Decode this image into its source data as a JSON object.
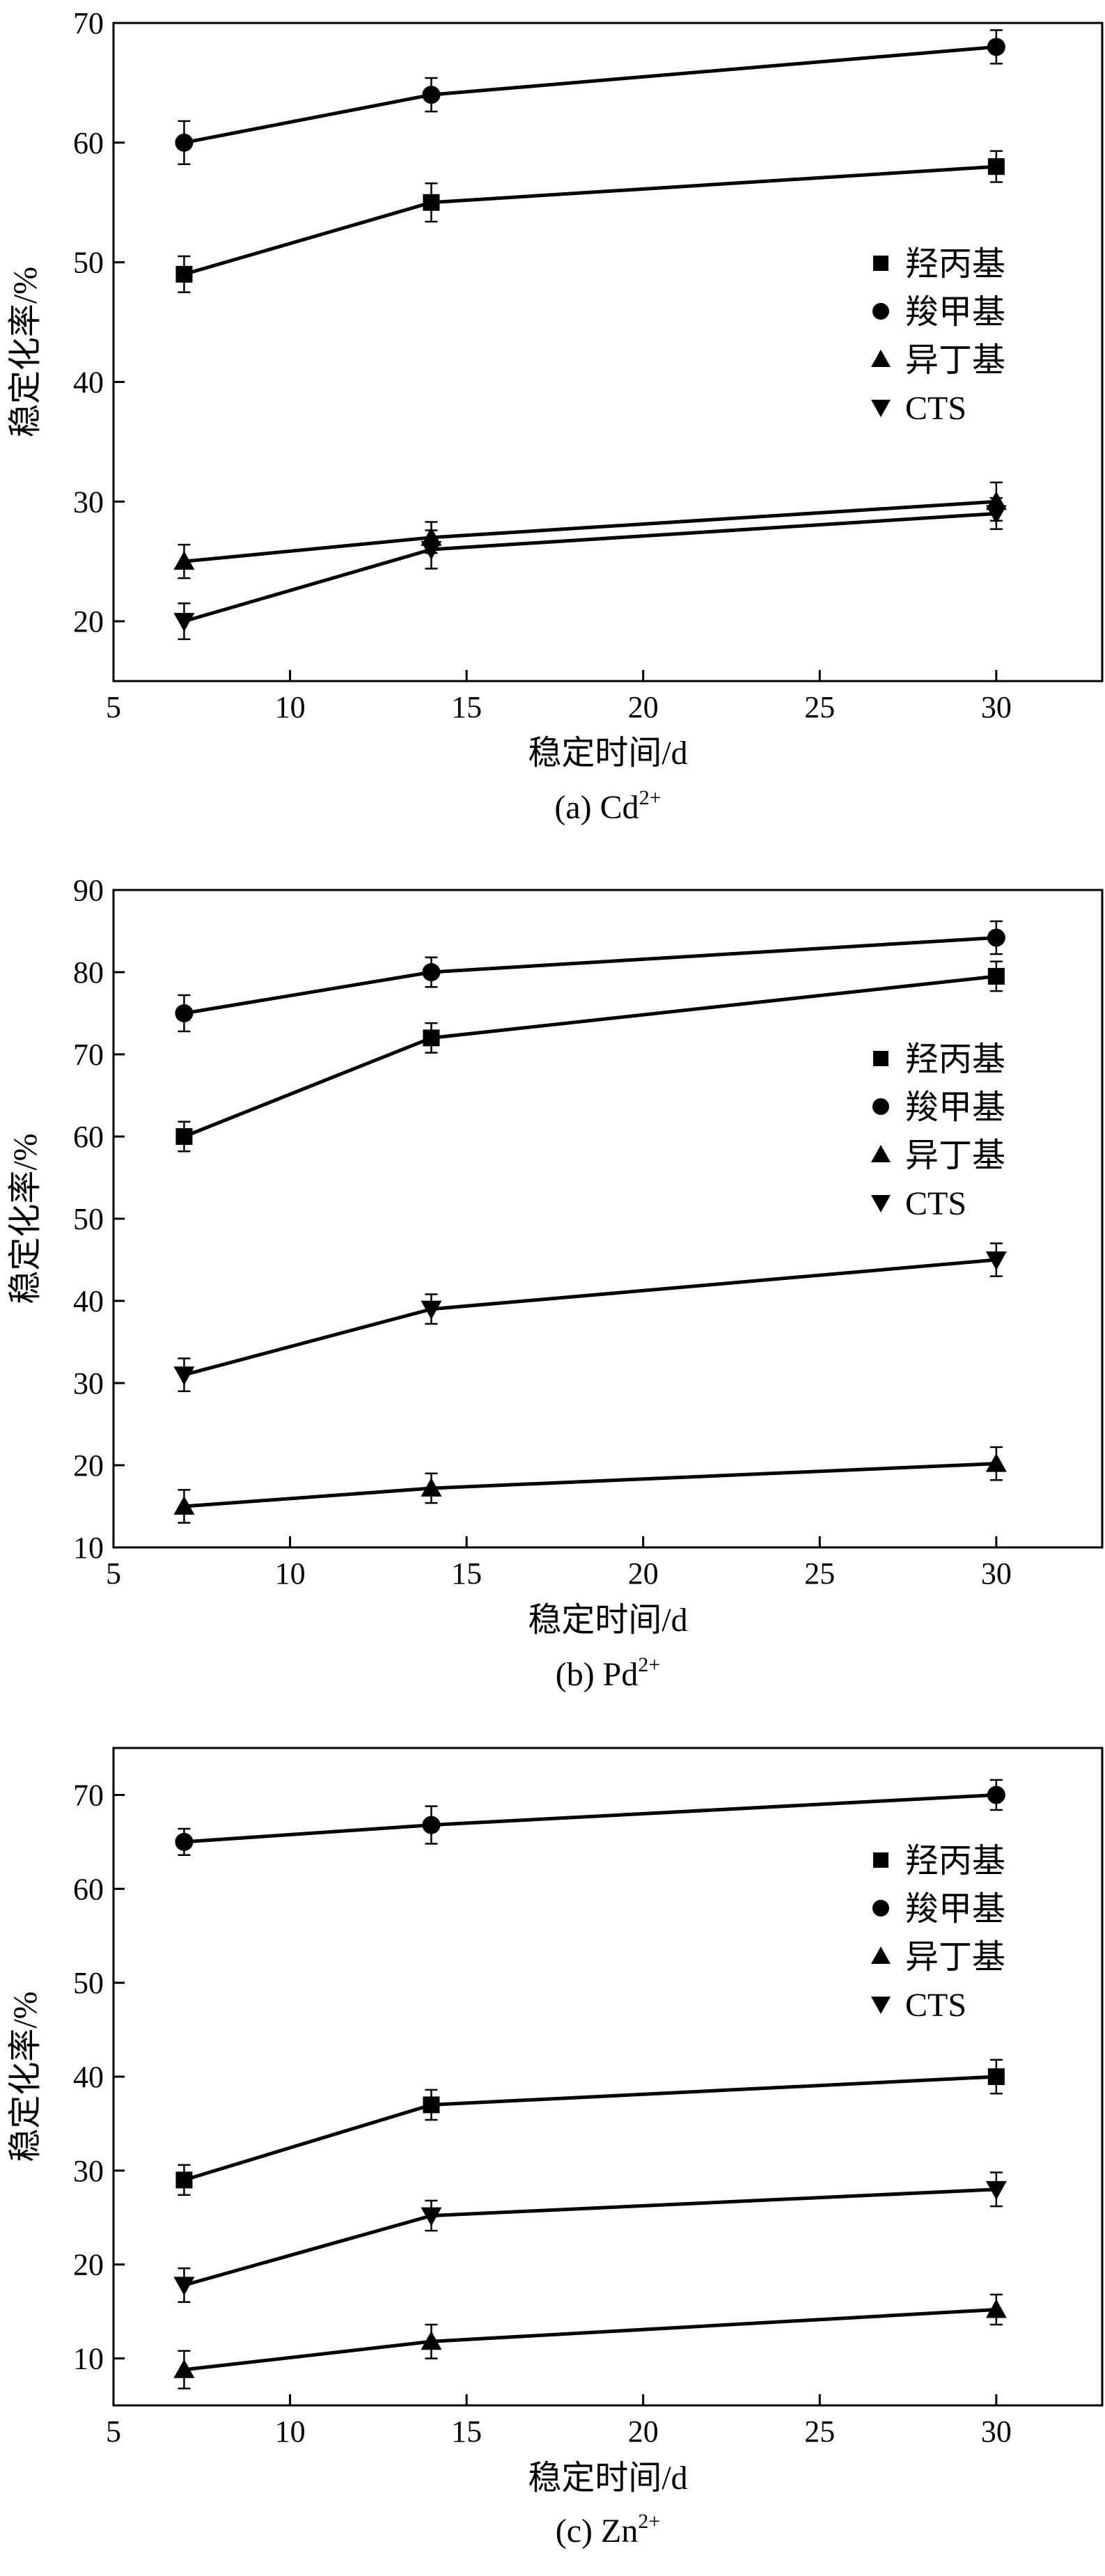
{
  "chart_data": [
    {
      "type": "line",
      "caption_prefix": "(a) Cd",
      "caption_superscript": "2+",
      "xlabel": "稳定时间/d",
      "ylabel": "稳定化率/%",
      "xlim": [
        5,
        33
      ],
      "ylim": [
        15,
        70
      ],
      "xticks": [
        5,
        10,
        15,
        20,
        25,
        30
      ],
      "yticks": [
        20,
        30,
        40,
        50,
        60,
        70
      ],
      "x": [
        7,
        14,
        30
      ],
      "series": [
        {
          "name": "羟丙基",
          "marker": "square",
          "values": [
            49,
            55,
            58
          ],
          "errors": [
            1.5,
            1.6,
            1.3
          ]
        },
        {
          "name": "羧甲基",
          "marker": "circle",
          "values": [
            60,
            64,
            68
          ],
          "errors": [
            1.8,
            1.4,
            1.4
          ]
        },
        {
          "name": "异丁基",
          "marker": "triangle-up",
          "values": [
            25,
            27,
            30
          ],
          "errors": [
            1.4,
            1.3,
            1.6
          ]
        },
        {
          "name": "CTS",
          "marker": "triangle-down",
          "values": [
            20,
            26,
            29
          ],
          "errors": [
            1.5,
            1.6,
            1.3
          ]
        }
      ]
    },
    {
      "type": "line",
      "caption_prefix": "(b) Pd",
      "caption_superscript": "2+",
      "xlabel": "稳定时间/d",
      "ylabel": "稳定化率/%",
      "xlim": [
        5,
        33
      ],
      "ylim": [
        10,
        90
      ],
      "xticks": [
        5,
        10,
        15,
        20,
        25,
        30
      ],
      "yticks": [
        10,
        20,
        30,
        40,
        50,
        60,
        70,
        80,
        90
      ],
      "x": [
        7,
        14,
        30
      ],
      "series": [
        {
          "name": "羟丙基",
          "marker": "square",
          "values": [
            60,
            72,
            79.5
          ],
          "errors": [
            1.8,
            1.8,
            1.8
          ]
        },
        {
          "name": "羧甲基",
          "marker": "circle",
          "values": [
            75,
            80,
            84.2
          ],
          "errors": [
            2.2,
            1.8,
            2.0
          ]
        },
        {
          "name": "异丁基",
          "marker": "triangle-up",
          "values": [
            15,
            17.2,
            20.2
          ],
          "errors": [
            2.0,
            1.8,
            2.0
          ]
        },
        {
          "name": "CTS",
          "marker": "triangle-down",
          "values": [
            31,
            39,
            45
          ],
          "errors": [
            2.0,
            1.8,
            2.0
          ]
        }
      ]
    },
    {
      "type": "line",
      "caption_prefix": "(c) Zn",
      "caption_superscript": "2+",
      "xlabel": "稳定时间/d",
      "ylabel": "稳定化率/%",
      "xlim": [
        5,
        33
      ],
      "ylim": [
        5,
        75
      ],
      "xticks": [
        5,
        10,
        15,
        20,
        25,
        30
      ],
      "yticks": [
        10,
        20,
        30,
        40,
        50,
        60,
        70
      ],
      "x": [
        7,
        14,
        30
      ],
      "series": [
        {
          "name": "羟丙基",
          "marker": "square",
          "values": [
            29,
            37,
            40
          ],
          "errors": [
            1.6,
            1.6,
            1.8
          ]
        },
        {
          "name": "羧甲基",
          "marker": "circle",
          "values": [
            65,
            66.8,
            70
          ],
          "errors": [
            1.4,
            2.0,
            1.6
          ]
        },
        {
          "name": "异丁基",
          "marker": "triangle-up",
          "values": [
            8.8,
            11.8,
            15.2
          ],
          "errors": [
            2.0,
            1.8,
            1.6
          ]
        },
        {
          "name": "CTS",
          "marker": "triangle-down",
          "values": [
            17.8,
            25.2,
            28
          ],
          "errors": [
            1.8,
            1.6,
            1.8
          ]
        }
      ]
    }
  ]
}
